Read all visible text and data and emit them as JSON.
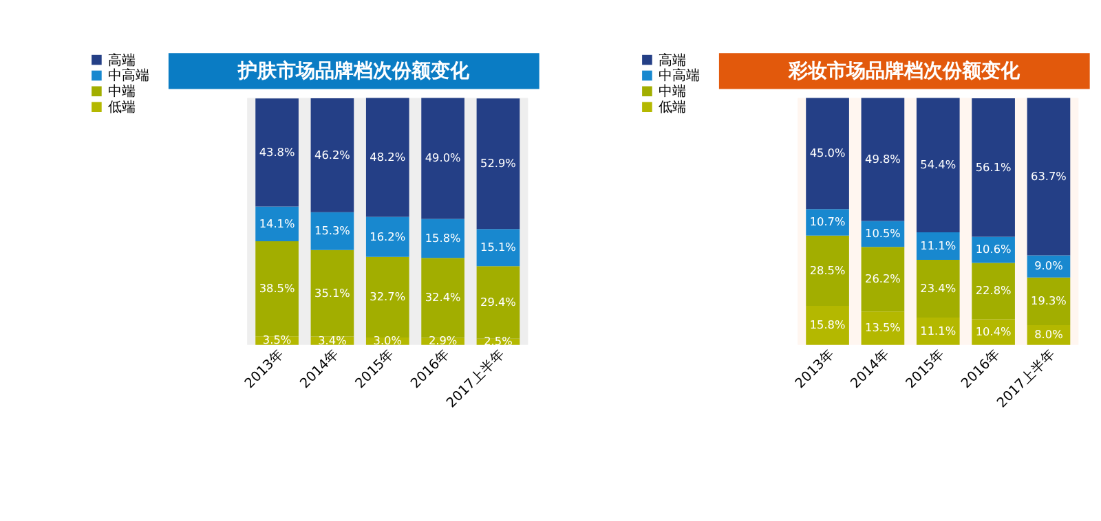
{
  "chart_data": [
    {
      "type": "bar",
      "stacked": true,
      "title": "护肤市场品牌档次份额变化",
      "legend": "left",
      "categories": [
        "2013年",
        "2014年",
        "2015年",
        "2016年",
        "2017上半年"
      ],
      "series": [
        {
          "name": "低端",
          "color": "#b4b800",
          "values": [
            3.5,
            3.4,
            3.0,
            2.9,
            2.5
          ],
          "value_labels": [
            "3.5%",
            "3.4%",
            "3.0%",
            "2.9%",
            "2.5%"
          ]
        },
        {
          "name": "中端",
          "color": "#a2ae00",
          "values": [
            38.5,
            35.1,
            32.7,
            32.4,
            29.4
          ],
          "value_labels": [
            "38.5%",
            "35.1%",
            "32.7%",
            "32.4%",
            "29.4%"
          ]
        },
        {
          "name": "中高端",
          "color": "#1888cf",
          "values": [
            14.1,
            15.3,
            16.2,
            15.8,
            15.1
          ],
          "value_labels": [
            "14.1%",
            "15.3%",
            "16.2%",
            "15.8%",
            "15.1%"
          ]
        },
        {
          "name": "高端",
          "color": "#243f86",
          "values": [
            43.8,
            46.2,
            48.2,
            49.0,
            52.9
          ],
          "value_labels": [
            "43.8%",
            "46.2%",
            "48.2%",
            "49.0%",
            "52.9%"
          ]
        }
      ]
    },
    {
      "type": "bar",
      "stacked": true,
      "title": "彩妆市场品牌档次份额变化",
      "legend": "left",
      "categories": [
        "2013年",
        "2014年",
        "2015年",
        "2016年",
        "2017上半年"
      ],
      "series": [
        {
          "name": "低端",
          "color": "#b4b800",
          "values": [
            15.8,
            13.5,
            11.1,
            10.4,
            8.0
          ],
          "value_labels": [
            "15.8%",
            "13.5%",
            "11.1%",
            "10.4%",
            "8.0%"
          ]
        },
        {
          "name": "中端",
          "color": "#a2ae00",
          "values": [
            28.5,
            26.2,
            23.4,
            22.8,
            19.3
          ],
          "value_labels": [
            "28.5%",
            "26.2%",
            "23.4%",
            "22.8%",
            "19.3%"
          ]
        },
        {
          "name": "中高端",
          "color": "#1888cf",
          "values": [
            10.7,
            10.5,
            11.1,
            10.6,
            9.0
          ],
          "value_labels": [
            "10.7%",
            "10.5%",
            "11.1%",
            "10.6%",
            "9.0%"
          ]
        },
        {
          "name": "高端",
          "color": "#243f86",
          "values": [
            45.0,
            49.8,
            54.4,
            56.1,
            63.7
          ],
          "value_labels": [
            "45.0%",
            "49.8%",
            "54.4%",
            "56.1%",
            "63.7%"
          ]
        }
      ]
    }
  ]
}
